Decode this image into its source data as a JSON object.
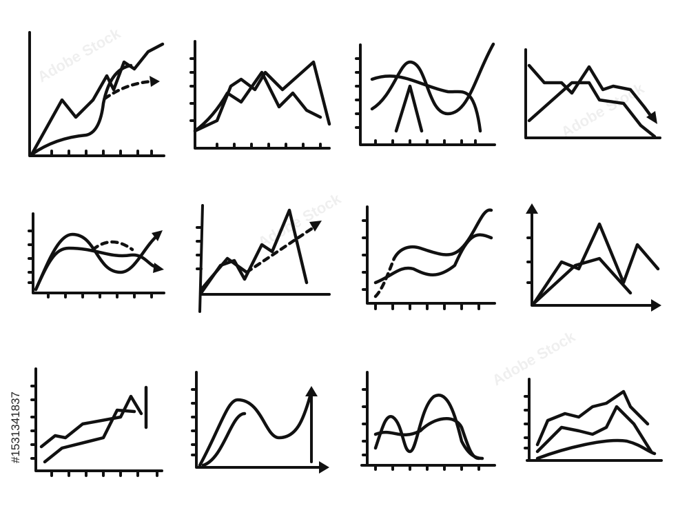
{
  "image_id": "#1531341837",
  "watermark": "Adobe Stock"
}
